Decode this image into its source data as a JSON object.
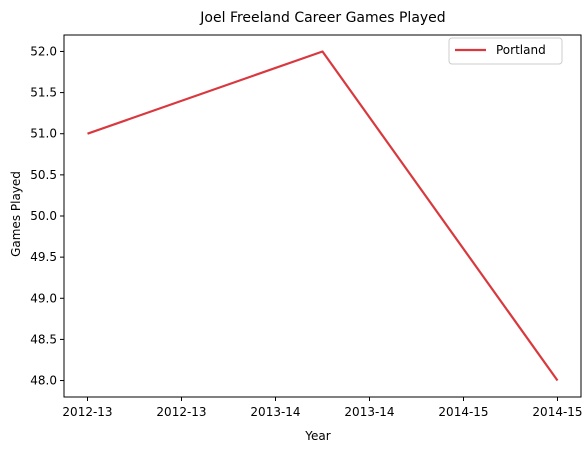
{
  "chart_data": {
    "type": "line",
    "title": "Joel Freeland Career Games Played",
    "xlabel": "Year",
    "ylabel": "Games Played",
    "x_tick_labels": [
      "2012-13",
      "2012-13",
      "2013-14",
      "2013-14",
      "2014-15",
      "2014-15"
    ],
    "y_tick_labels": [
      "48.0",
      "48.5",
      "49.0",
      "49.5",
      "50.0",
      "50.5",
      "51.0",
      "51.5",
      "52.0"
    ],
    "y_ticks": [
      48.0,
      48.5,
      49.0,
      49.5,
      50.0,
      50.5,
      51.0,
      51.5,
      52.0
    ],
    "ylim": [
      47.8,
      52.2
    ],
    "x_ticks": [
      0.0,
      0.4,
      0.8,
      1.2,
      1.6,
      2.0
    ],
    "xlim": [
      -0.1,
      2.1
    ],
    "series": [
      {
        "name": "Portland",
        "color": "#d9383f",
        "x": [
          0,
          1,
          2
        ],
        "x_labels": [
          "2012-13",
          "2013-14",
          "2014-15"
        ],
        "values": [
          51,
          52,
          48
        ]
      }
    ],
    "grid": false,
    "legend_position": "top-right"
  }
}
